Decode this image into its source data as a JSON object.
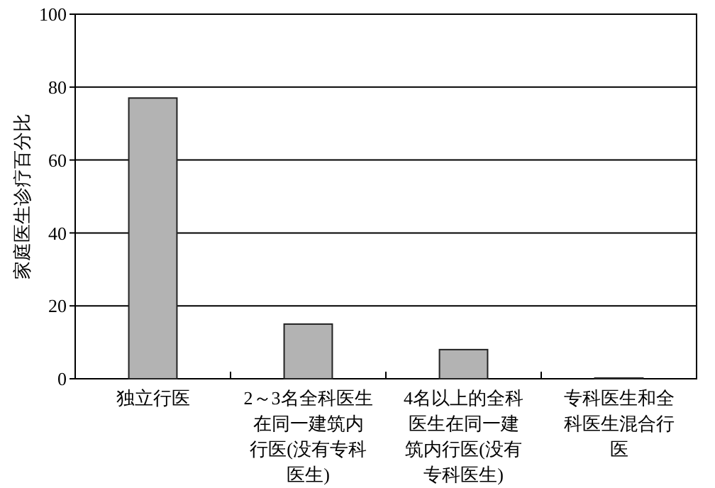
{
  "chart_data": {
    "type": "bar",
    "ylabel": "家庭医生诊疗百分比",
    "categories": [
      "独立行医",
      "2～3名全科医生在同一建筑内行医(没有专科医生)",
      "4名以上的全科医生在同一建筑内行医(没有专科医生)",
      "专科医生和全科医生混合行医"
    ],
    "values": [
      77,
      15,
      8,
      0.2
    ],
    "color": "#b3b3b3",
    "ylim": [
      0,
      100
    ],
    "yticks": [
      0,
      20,
      40,
      60,
      80,
      100
    ],
    "grid": "y"
  }
}
